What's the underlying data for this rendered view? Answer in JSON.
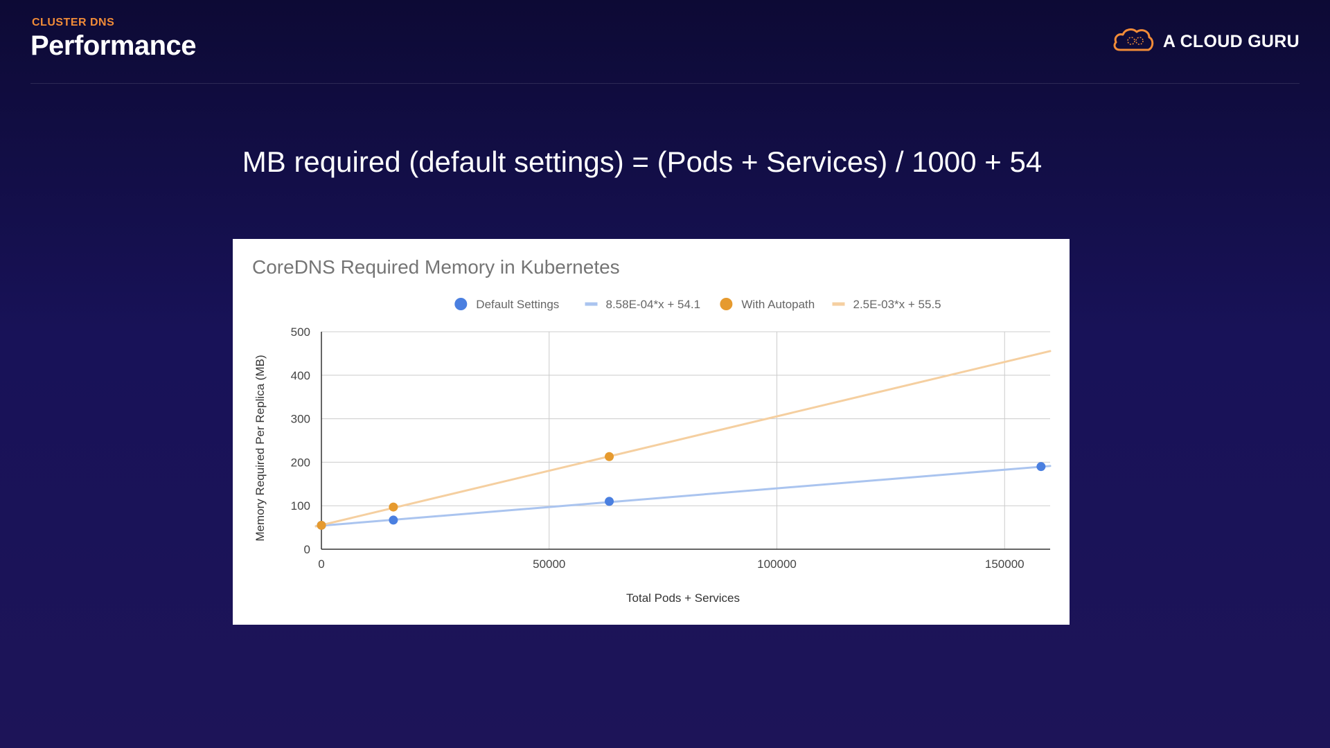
{
  "header": {
    "kicker": "CLUSTER DNS",
    "title": "Performance",
    "brand_name": "A CLOUD GURU",
    "brand_icon": "cloud-icon",
    "accent_color": "#f28c38"
  },
  "main": {
    "formula": "MB required (default settings) = (Pods + Services) / 1000 + 54"
  },
  "chart_data": {
    "type": "scatter",
    "title": "CoreDNS Required Memory in Kubernetes",
    "xlabel": "Total Pods + Services",
    "ylabel": "Memory Required Per Replica (MB)",
    "xlim": [
      0,
      160000
    ],
    "ylim": [
      0,
      500
    ],
    "xticks": [
      0,
      50000,
      100000,
      150000
    ],
    "yticks": [
      0,
      100,
      200,
      300,
      400,
      500
    ],
    "grid": true,
    "legend_position": "top",
    "series": [
      {
        "name": "Default Settings",
        "color": "#4a7fe0",
        "points": [
          [
            0,
            55
          ],
          [
            15800,
            67
          ],
          [
            63200,
            110
          ],
          [
            158000,
            190
          ]
        ],
        "trendline": {
          "label": "8.58E-04*x + 54.1",
          "slope": 0.000858,
          "intercept": 54.1,
          "color": "#aac4ef"
        }
      },
      {
        "name": "With Autopath",
        "color": "#e69a2e",
        "points": [
          [
            0,
            55
          ],
          [
            15800,
            97
          ],
          [
            63200,
            213
          ]
        ],
        "trendline": {
          "label": "2.5E-03*x + 55.5",
          "slope": 0.0025,
          "intercept": 55.5,
          "color": "#f5cfa0"
        }
      }
    ]
  }
}
